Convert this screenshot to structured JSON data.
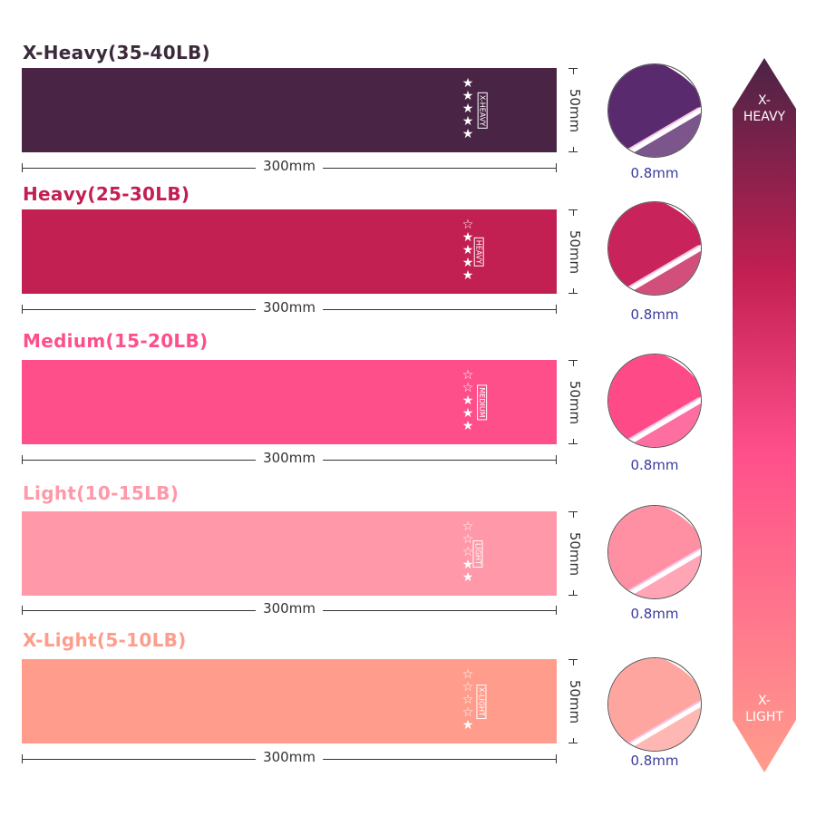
{
  "bands": [
    {
      "title": "X-Heavy(35-40LB)",
      "tag": "X-HEAVY",
      "stars_filled": 5,
      "stars_total": 5,
      "length": "300mm",
      "width": "50mm",
      "thickness": "0.8mm",
      "color": "#4a2445",
      "title_color": "#3b2a3a",
      "circle_color": "#5a2a6e"
    },
    {
      "title": "Heavy(25-30LB)",
      "tag": "HEAVY",
      "stars_filled": 4,
      "stars_total": 5,
      "length": "300mm",
      "width": "50mm",
      "thickness": "0.8mm",
      "color": "#c21f52",
      "title_color": "#c21f52",
      "circle_color": "#c8235a"
    },
    {
      "title": "Medium(15-20LB)",
      "tag": "MEDIUM",
      "stars_filled": 3,
      "stars_total": 5,
      "length": "300mm",
      "width": "50mm",
      "thickness": "0.8mm",
      "color": "#ff4f8b",
      "title_color": "#ff4f8b",
      "circle_color": "#ff4a88"
    },
    {
      "title": "Light(10-15LB)",
      "tag": "LIGHT",
      "stars_filled": 2,
      "stars_total": 5,
      "length": "300mm",
      "width": "50mm",
      "thickness": "0.8mm",
      "color": "#ff98a8",
      "title_color": "#ff98a8",
      "circle_color": "#ff8fa3"
    },
    {
      "title": "X-Light(5-10LB)",
      "tag": "X-LIGHT",
      "stars_filled": 1,
      "stars_total": 5,
      "length": "300mm",
      "width": "50mm",
      "thickness": "0.8mm",
      "color": "#ff9c8c",
      "title_color": "#ff9c8c",
      "circle_color": "#ffa5a0"
    }
  ],
  "scale": {
    "top_label": "X-\nHEAVY",
    "bottom_label": "X-\nLIGHT",
    "top_color": "#4a2445",
    "mid_color": "#ff4f8b",
    "bottom_color": "#ff9c8c"
  }
}
